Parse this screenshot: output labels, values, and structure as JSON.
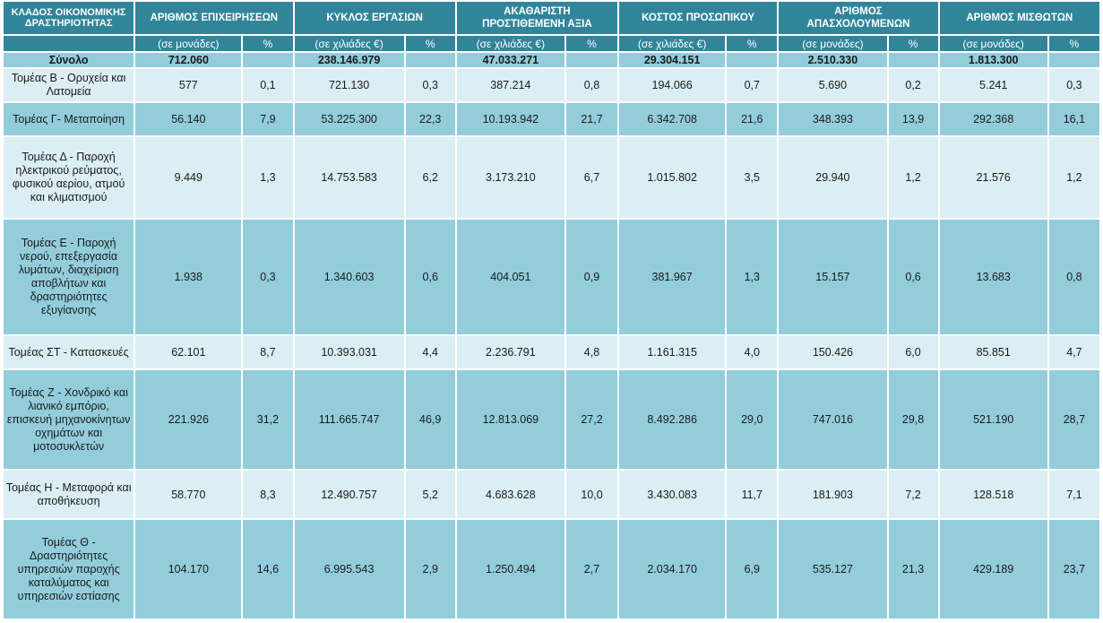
{
  "headers": {
    "sector": "ΚΛΑΔΟΣ ΟΙΚΟΝΟΜΙΚΗΣ ΔΡΑΣΤΗΡΙΟΤΗΤΑΣ",
    "groups": [
      "ΑΡΙΘΜΟΣ ΕΠΙΧΕΙΡΗΣΕΩΝ",
      "ΚΥΚΛΟΣ ΕΡΓΑΣΙΩΝ",
      "ΑΚΑΘΑΡΙΣΤΗ ΠΡΟΣΤΙΘΕΜΕΝΗ ΑΞΙΑ",
      "ΚΟΣΤΟΣ ΠΡΟΣΩΠΙΚΟΥ",
      "ΑΡΙΘΜΟΣ ΑΠΑΣΧΟΛΟΥΜΕΝΩΝ",
      "ΑΡΙΘΜΟΣ ΜΙΣΘΩΤΩΝ"
    ],
    "units": [
      "(σε μονάδες)",
      "%",
      "(σε χιλιάδες €)",
      "%",
      "(σε χιλιάδες €)",
      "%",
      "(σε χιλιάδες €)",
      "%",
      "(σε μονάδες)",
      "%",
      "(σε μονάδες)",
      "%"
    ]
  },
  "total": {
    "label": "Σύνολο",
    "values": [
      "712.060",
      "",
      "238.146.979",
      "",
      "47.033.271",
      "",
      "29.304.151",
      "",
      "2.510.330",
      "",
      "1.813.300",
      ""
    ]
  },
  "rows": [
    {
      "label": "Τομέας Β - Ορυχεία και Λατομεία",
      "values": [
        "577",
        "0,1",
        "721.130",
        "0,3",
        "387.214",
        "0,8",
        "194.066",
        "0,7",
        "5.690",
        "0,2",
        "5.241",
        "0,3"
      ]
    },
    {
      "label": "Τομέας Γ- Μεταποίηση",
      "values": [
        "56.140",
        "7,9",
        "53.225.300",
        "22,3",
        "10.193.942",
        "21,7",
        "6.342.708",
        "21,6",
        "348.393",
        "13,9",
        "292.368",
        "16,1"
      ]
    },
    {
      "label": "Τομέας Δ - Παροχή ηλεκτρικού ρεύματος, φυσικού αερίου, ατμού και κλιματισμού",
      "values": [
        "9.449",
        "1,3",
        "14.753.583",
        "6,2",
        "3.173.210",
        "6,7",
        "1.015.802",
        "3,5",
        "29.940",
        "1,2",
        "21.576",
        "1,2"
      ]
    },
    {
      "label": "Τομέας Ε - Παροχή νερού, επεξεργασία λυμάτων, διαχείριση αποβλήτων και δραστηριότητες εξυγίανσης",
      "values": [
        "1.938",
        "0,3",
        "1.340.603",
        "0,6",
        "404.051",
        "0,9",
        "381.967",
        "1,3",
        "15.157",
        "0,6",
        "13.683",
        "0,8"
      ]
    },
    {
      "label": "Τομέας ΣΤ - Κατασκευές",
      "values": [
        "62.101",
        "8,7",
        "10.393.031",
        "4,4",
        "2.236.791",
        "4,8",
        "1.161.315",
        "4,0",
        "150.426",
        "6,0",
        "85.851",
        "4,7"
      ]
    },
    {
      "label": "Τομέας Ζ - Χονδρικό και λιανικό εμπόριο, επισκευή μηχανοκίνητων οχημάτων και μοτοσυκλετών",
      "values": [
        "221.926",
        "31,2",
        "111.665.747",
        "46,9",
        "12.813.069",
        "27,2",
        "8.492.286",
        "29,0",
        "747.016",
        "29,8",
        "521.190",
        "28,7"
      ]
    },
    {
      "label": "Τομέας Η - Μεταφορά και αποθήκευση",
      "values": [
        "58.770",
        "8,3",
        "12.490.757",
        "5,2",
        "4.683.628",
        "10,0",
        "3.430.083",
        "11,7",
        "181.903",
        "7,2",
        "128.518",
        "7,1"
      ]
    },
    {
      "label": "Τομέας Θ - Δραστηριότητες υπηρεσιών παροχής καταλύματος και υπηρεσιών εστίασης",
      "values": [
        "104.170",
        "14,6",
        "6.995.543",
        "2,9",
        "1.250.494",
        "2,7",
        "2.034.170",
        "6,9",
        "535.127",
        "21,3",
        "429.189",
        "23,7"
      ]
    }
  ]
}
